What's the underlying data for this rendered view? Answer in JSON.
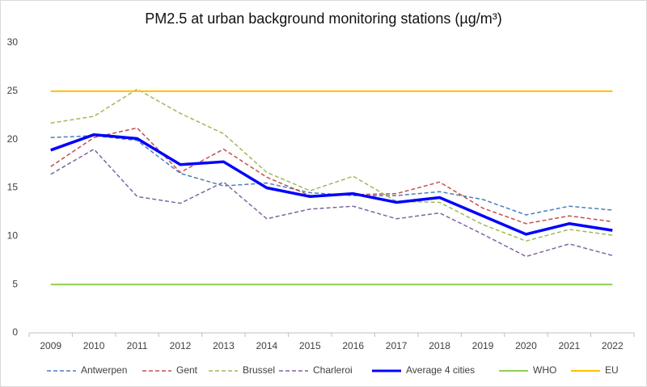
{
  "chart_data": {
    "type": "line",
    "title": "PM2.5 at urban background monitoring stations (µg/m³)",
    "categories": [
      "2009",
      "2010",
      "2011",
      "2012",
      "2013",
      "2014",
      "2015",
      "2016",
      "2017",
      "2018",
      "2019",
      "2020",
      "2021",
      "2022"
    ],
    "series": [
      {
        "name": "Antwerpen",
        "color": "#4a7ebb",
        "dashed": true,
        "line_width": 1.5,
        "values": [
          20.2,
          20.4,
          19.9,
          16.5,
          15.2,
          15.5,
          14.5,
          14.2,
          14.2,
          14.6,
          13.8,
          12.2,
          13.1,
          12.7
        ]
      },
      {
        "name": "Gent",
        "color": "#c0504d",
        "dashed": true,
        "line_width": 1.5,
        "values": [
          17.2,
          20.2,
          21.2,
          16.6,
          19.0,
          16.1,
          14.2,
          14.3,
          14.4,
          15.6,
          12.9,
          11.3,
          12.1,
          11.5
        ]
      },
      {
        "name": "Brussel",
        "color": "#9bbb59",
        "dashed": true,
        "line_width": 1.5,
        "values": [
          21.7,
          22.4,
          25.2,
          22.7,
          20.6,
          16.6,
          14.7,
          16.2,
          13.6,
          13.5,
          11.2,
          9.5,
          10.7,
          10.1
        ]
      },
      {
        "name": "Charleroi",
        "color": "#8064a2",
        "dashed": true,
        "line_width": 1.5,
        "values": [
          16.4,
          19.0,
          14.1,
          13.4,
          15.6,
          11.8,
          12.8,
          13.1,
          11.8,
          12.4,
          10.2,
          7.9,
          9.2,
          8.0
        ]
      },
      {
        "name": "Average 4 cities",
        "color": "#0000ff",
        "dashed": false,
        "line_width": 3.5,
        "values": [
          18.9,
          20.5,
          20.1,
          17.4,
          17.7,
          15.0,
          14.1,
          14.4,
          13.5,
          14.0,
          12.1,
          10.2,
          11.3,
          10.6
        ]
      },
      {
        "name": "WHO",
        "color": "#92d050",
        "dashed": false,
        "line_width": 2,
        "values": [
          5,
          5,
          5,
          5,
          5,
          5,
          5,
          5,
          5,
          5,
          5,
          5,
          5,
          5
        ]
      },
      {
        "name": "EU",
        "color": "#ffc000",
        "dashed": false,
        "line_width": 2,
        "values": [
          25,
          25,
          25,
          25,
          25,
          25,
          25,
          25,
          25,
          25,
          25,
          25,
          25,
          25
        ]
      }
    ],
    "ylim": [
      0,
      30
    ],
    "yticks": [
      0,
      5,
      10,
      15,
      20,
      25,
      30
    ],
    "grid": false,
    "legend": "bottom"
  }
}
